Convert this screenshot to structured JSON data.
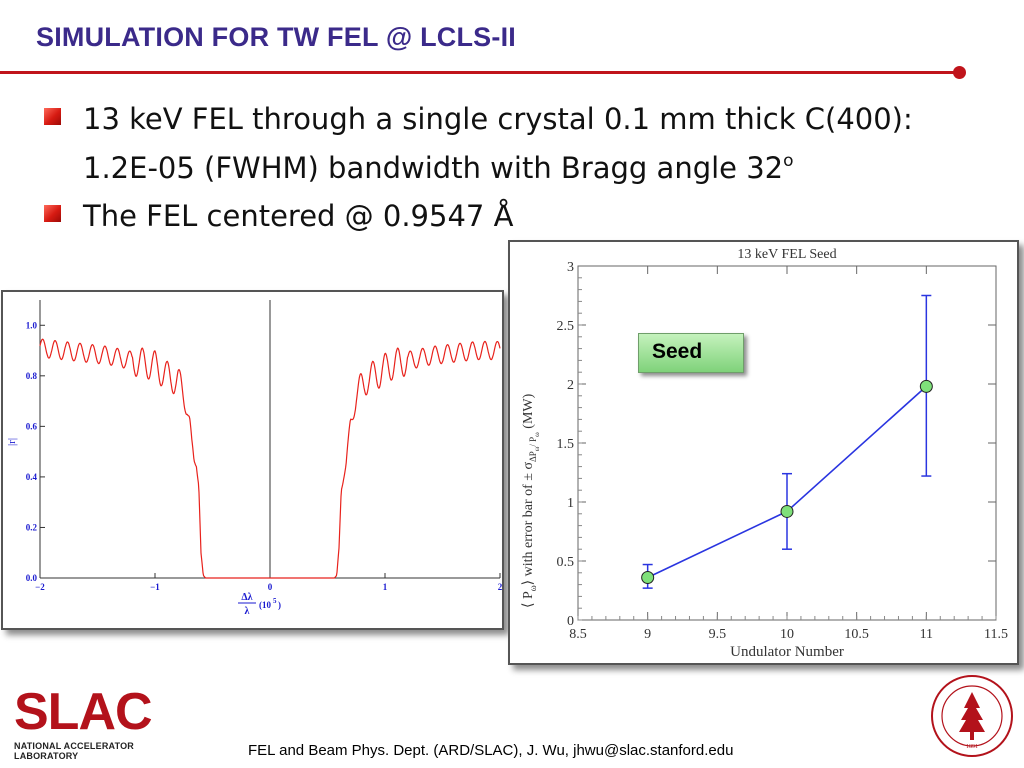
{
  "slide": {
    "title": "SIMULATION FOR TW FEL @ LCLS-II",
    "bullets": [
      {
        "line1": "13 keV FEL through a single crystal 0.1 mm thick C(400):",
        "line2": "1.2E-05 (FWHM) bandwidth with Bragg angle 32",
        "sup": "o"
      },
      {
        "line1": "The FEL centered @ 0.9547 Å"
      }
    ],
    "footer": "FEL and Beam Phys. Dept. (ARD/SLAC), J. Wu, jhwu@slac.stanford.edu",
    "logo": {
      "word": "SLAC",
      "subtitle": "NATIONAL ACCELERATOR LABORATORY"
    },
    "seal": {
      "text": "LELAND STANFORD JUNIOR UNIVERSITY",
      "year": "1891"
    },
    "seed_label": "Seed",
    "colors": {
      "title": "#3b2a8a",
      "accent_red": "#c0141b",
      "curve_red": "#e8221c",
      "series_blue": "#2a35e0",
      "marker_green": "#7fe07a",
      "axis_text_blue": "#1a1ad0"
    }
  },
  "chart_data": [
    {
      "type": "line",
      "title": "",
      "xlabel_num": "Δλ",
      "xlabel_den": "λ",
      "xlabel_unit": "(10",
      "xlabel_exp": "5",
      "xlabel_close": ")",
      "ylabel": "|r|",
      "xlim": [
        -2,
        2
      ],
      "ylim": [
        0,
        1.1
      ],
      "xticks": [
        -2,
        -1,
        0,
        1,
        2
      ],
      "xtick_labels": [
        "−2",
        "−1",
        "0",
        "1",
        "2"
      ],
      "yticks": [
        0.0,
        0.2,
        0.4,
        0.6,
        0.8,
        1.0
      ],
      "ytick_labels": [
        "0.0",
        "0.2",
        "0.4",
        "0.6",
        "0.8",
        "1.0"
      ],
      "grid": false,
      "series": [
        {
          "x": [
            -2.0,
            -1.8,
            -1.6,
            -1.4,
            -1.3,
            -1.2,
            -1.1,
            -1.0,
            -0.95,
            -0.9,
            -0.85,
            -0.8,
            -0.75,
            -0.72,
            -0.7,
            -0.68,
            -0.66,
            -0.64,
            -0.62,
            -0.6,
            -0.58,
            -0.56,
            0.56,
            0.58,
            0.6,
            0.62,
            0.64,
            0.66,
            0.68,
            0.7,
            0.72,
            0.75,
            0.8,
            0.85,
            0.9,
            0.95,
            1.0,
            1.1,
            1.2,
            1.3,
            1.4,
            1.6,
            1.8,
            2.0
          ],
          "y": [
            0.91,
            0.9,
            0.89,
            0.88,
            0.87,
            0.86,
            0.85,
            0.84,
            0.82,
            0.8,
            0.79,
            0.78,
            0.72,
            0.68,
            0.63,
            0.52,
            0.45,
            0.45,
            0.38,
            0.1,
            0.01,
            0.0,
            0.0,
            0.01,
            0.12,
            0.36,
            0.4,
            0.43,
            0.52,
            0.62,
            0.66,
            0.72,
            0.76,
            0.79,
            0.8,
            0.81,
            0.83,
            0.85,
            0.86,
            0.87,
            0.88,
            0.89,
            0.9,
            0.9
          ]
        }
      ]
    },
    {
      "type": "line",
      "title": "13 keV FEL Seed",
      "xlabel": "Undulator Number",
      "ylabel_left": "⟨ P",
      "ylabel_sub1": "ω",
      "ylabel_mid": "⟩ with error bar of ± σ",
      "ylabel_sub2": "ΔP",
      "ylabel_sub2b": "ω",
      "ylabel_sub2c": "/ P",
      "ylabel_sub2d": "ω",
      "ylabel_unit": "(MW)",
      "xlim": [
        8.5,
        11.5
      ],
      "ylim": [
        0,
        3
      ],
      "xticks": [
        8.5,
        9,
        9.5,
        10,
        10.5,
        11,
        11.5
      ],
      "xtick_labels": [
        "8.5",
        "9",
        "9.5",
        "10",
        "10.5",
        "11",
        "11.5"
      ],
      "yticks": [
        0,
        0.5,
        1,
        1.5,
        2,
        2.5,
        3
      ],
      "ytick_labels": [
        "0",
        "0.5",
        "1",
        "1.5",
        "2",
        "2.5",
        "3"
      ],
      "grid": false,
      "series": [
        {
          "x": [
            9,
            10,
            11
          ],
          "y": [
            0.36,
            0.92,
            1.98
          ],
          "err_low": [
            0.27,
            0.6,
            1.22
          ],
          "err_high": [
            0.47,
            1.24,
            2.75
          ]
        }
      ]
    }
  ]
}
